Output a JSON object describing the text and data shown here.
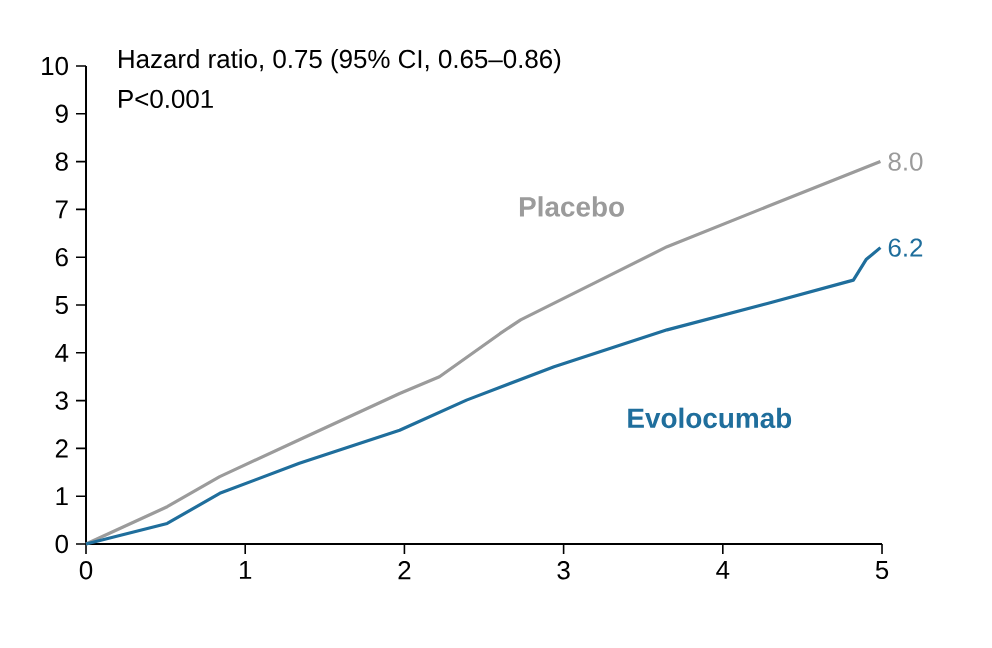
{
  "chart_data": {
    "type": "line",
    "xlim": [
      0,
      5
    ],
    "ylim": [
      0,
      10
    ],
    "xticks": [
      0,
      1,
      2,
      3,
      4,
      5
    ],
    "yticks": [
      0,
      1,
      2,
      3,
      4,
      5,
      6,
      7,
      8,
      9,
      10
    ],
    "grid": false,
    "legend": false,
    "marker": "none",
    "line_style": "solid",
    "annotations": [
      "Hazard ratio, 0.75 (95% CI, 0.65–0.86)",
      "P<0.001"
    ],
    "series": [
      {
        "name": "Placebo",
        "color": "#9b9b9b",
        "x": [
          0,
          0.51,
          0.84,
          1.34,
          1.97,
          2.22,
          2.6,
          2.73,
          3.23,
          3.65,
          4.28,
          4.99
        ],
        "values": [
          0,
          0.78,
          1.41,
          2.18,
          3.15,
          3.5,
          4.4,
          4.69,
          5.52,
          6.22,
          7.06,
          8.0
        ],
        "value_labels": [
          null,
          null,
          null,
          null,
          null,
          null,
          null,
          null,
          null,
          null,
          null,
          "8.0"
        ]
      },
      {
        "name": "Evolocumab",
        "color": "#1f6e9c",
        "x": [
          0,
          0.51,
          0.84,
          1.34,
          1.97,
          2.39,
          2.94,
          3.65,
          4.28,
          4.82,
          4.9,
          4.99
        ],
        "values": [
          0,
          0.43,
          1.06,
          1.69,
          2.38,
          3.01,
          3.71,
          4.48,
          5.03,
          5.52,
          5.95,
          6.2
        ],
        "value_labels": [
          null,
          null,
          null,
          null,
          null,
          null,
          null,
          null,
          null,
          null,
          null,
          "6.2"
        ]
      }
    ]
  }
}
